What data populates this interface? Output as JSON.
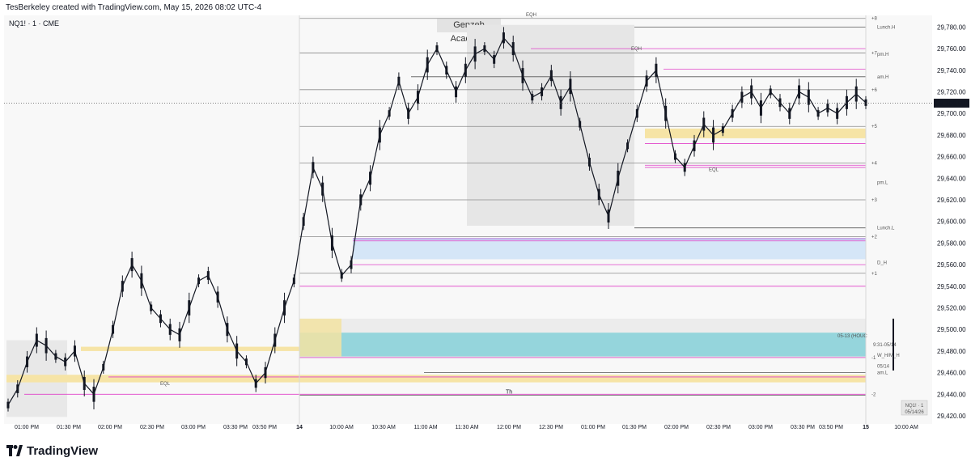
{
  "header": {
    "attribution": "TesBerkeley created with TradingView.com, May 15, 2026 08:02 UTC-4"
  },
  "chart": {
    "symbol": "NQ1! · 1 · CME",
    "watermark": "Genzeb Academy",
    "footer_brand": "TradingView"
  },
  "chart_data": {
    "type": "line",
    "ylim": [
      29400,
      29800
    ],
    "y_ticks": [
      "29,780.00",
      "29,760.00",
      "29,740.00",
      "29,720.00",
      "29,700.00",
      "29,680.00",
      "29,660.00",
      "29,640.00",
      "29,620.00",
      "29,600.00",
      "29,580.00",
      "29,560.00",
      "29,540.00",
      "29,520.00",
      "29,500.00",
      "29,480.00",
      "29,460.00",
      "29,440.00",
      "29,420.00"
    ],
    "y_tick_values": [
      29780,
      29760,
      29740,
      29720,
      29700,
      29680,
      29660,
      29640,
      29620,
      29600,
      29580,
      29560,
      29540,
      29520,
      29500,
      29480,
      29460,
      29440,
      29420
    ],
    "current_price": {
      "label": "29,709.50",
      "value": 29709.5
    },
    "x_ticks": [
      "01:00 PM",
      "01:30 PM",
      "02:00 PM",
      "02:30 PM",
      "03:00 PM",
      "03:30 PM",
      "03:50 PM",
      "14",
      "10:00 AM",
      "10:30 AM",
      "11:00 AM",
      "11:30 AM",
      "12:00 PM",
      "12:30 PM",
      "01:00 PM",
      "01:30 PM",
      "02:00 PM",
      "02:30 PM",
      "03:00 PM",
      "03:30 PM",
      "03:50 PM",
      "15",
      "10:00 AM"
    ],
    "bold_x_ticks": [
      "14",
      "15"
    ],
    "series": [
      {
        "values": [
          29430,
          29445,
          29470,
          29490,
          29485,
          29475,
          29470,
          29480,
          29450,
          29440,
          29465,
          29500,
          29540,
          29560,
          29545,
          29520,
          29510,
          29500,
          29495,
          29520,
          29545,
          29550,
          29530,
          29500,
          29480,
          29470,
          29450,
          29460,
          29490,
          29520,
          29545,
          29600,
          29650,
          29630,
          29580,
          29550,
          29560,
          29620,
          29640,
          29680,
          29700,
          29730,
          29700,
          29715,
          29745,
          29760,
          29740,
          29720,
          29740,
          29755,
          29760,
          29750,
          29770,
          29760,
          29735,
          29715,
          29720,
          29735,
          29710,
          29725,
          29690,
          29655,
          29625,
          29605,
          29640,
          29670,
          29700,
          29730,
          29740,
          29700,
          29660,
          29650,
          29670,
          29690,
          29680,
          29685,
          29700,
          29715,
          29720,
          29705,
          29720,
          29710,
          29700,
          29720,
          29715,
          29700,
          29705,
          29700,
          29710,
          29718,
          29710
        ],
        "color": "#131722"
      }
    ],
    "levels": [
      {
        "label": "+8",
        "value": 29788
      },
      {
        "label": "Lunch.H",
        "value": 29780
      },
      {
        "label": "EQH",
        "value": 29790
      },
      {
        "label": "EQH",
        "value": 29760
      },
      {
        "label": "+7",
        "value": 29756
      },
      {
        "label": "pm.H",
        "value": 29755
      },
      {
        "label": "am.H",
        "value": 29734
      },
      {
        "label": "+6",
        "value": 29722
      },
      {
        "label": "+5",
        "value": 29688
      },
      {
        "label": "EQL",
        "value": 29648
      },
      {
        "label": "+4",
        "value": 29654
      },
      {
        "label": "pm.L",
        "value": 29636
      },
      {
        "label": "+3",
        "value": 29620
      },
      {
        "label": "Lunch.L",
        "value": 29594
      },
      {
        "label": "+2",
        "value": 29586
      },
      {
        "label": "D_H",
        "value": 29562
      },
      {
        "label": "+1",
        "value": 29552
      },
      {
        "label": "9:31-05/14",
        "value": 29486
      },
      {
        "label": "05-13 (HOUC",
        "value": 29494
      },
      {
        "label": "W_H/M_H",
        "value": 29476
      },
      {
        "label": "-1",
        "value": 29474
      },
      {
        "label": "05/14",
        "value": 29466
      },
      {
        "label": "am.L",
        "value": 29460
      },
      {
        "label": "EQL",
        "value": 29450
      },
      {
        "label": "Th",
        "value": 29442
      },
      {
        "label": "-2",
        "value": 29440
      }
    ],
    "badge": {
      "line1": "NQ1! · 1",
      "line2": "05/14/26"
    }
  }
}
